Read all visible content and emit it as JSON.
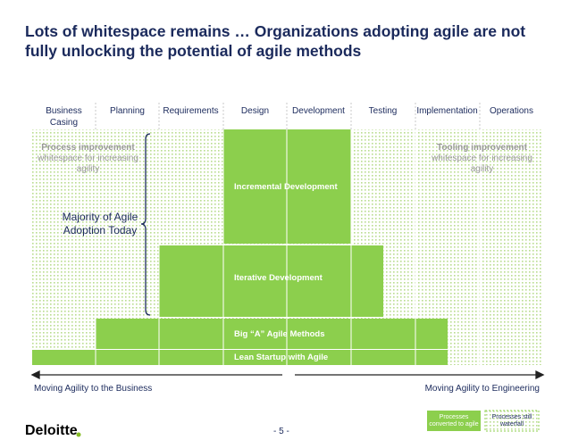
{
  "title": "Lots of whitespace remains … Organizations adopting agile are not fully unlocking the potential of agile methods",
  "columns": [
    "Business Casing",
    "Planning",
    "Requirements",
    "Design",
    "Development",
    "Testing",
    "Implementation",
    "Operations"
  ],
  "blocks": [
    "Incremental Development",
    "Iterative Development",
    "Big “A” Agile Methods",
    "Lean Startup with Agile"
  ],
  "annotations": {
    "left": "Process improvement",
    "left_sub": "whitespace for increasing agility",
    "right": "Tooling improvement",
    "right_sub": "whitespace for increasing agility",
    "majority": "Majority of Agile Adoption Today"
  },
  "arrows": {
    "left": "Moving Agility to the Business",
    "right": "Moving Agility to Engineering"
  },
  "legend": [
    "Processes converted to agile",
    "Processes still waterfall"
  ],
  "footer": {
    "logo": "Deloitte",
    "page": "- 5 -"
  }
}
